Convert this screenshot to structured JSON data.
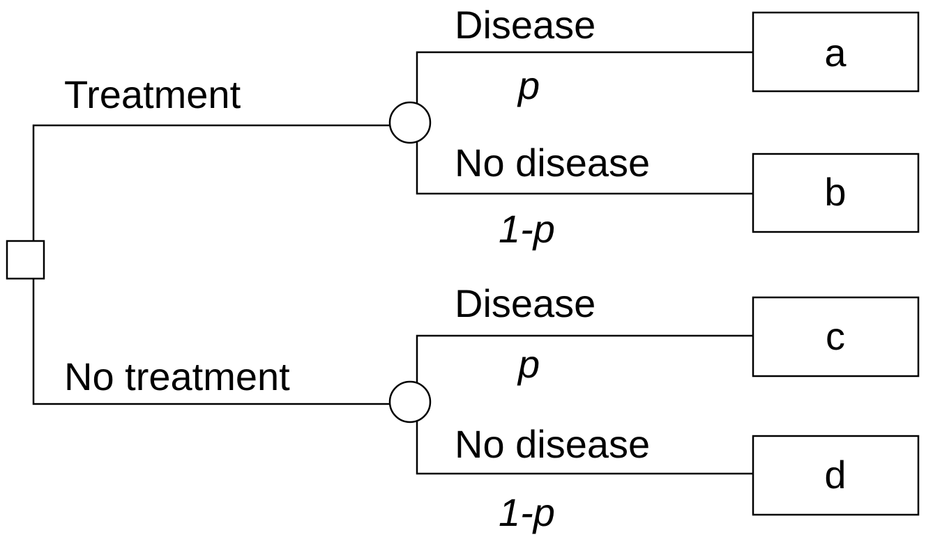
{
  "branches": [
    {
      "label": "Treatment",
      "outcomes": [
        {
          "label": "Disease",
          "probability": "p",
          "result": "a"
        },
        {
          "label": "No disease",
          "probability": "1-p",
          "result": "b"
        }
      ]
    },
    {
      "label": "No treatment",
      "outcomes": [
        {
          "label": "Disease",
          "probability": "p",
          "result": "c"
        },
        {
          "label": "No disease",
          "probability": "1-p",
          "result": "d"
        }
      ]
    }
  ]
}
